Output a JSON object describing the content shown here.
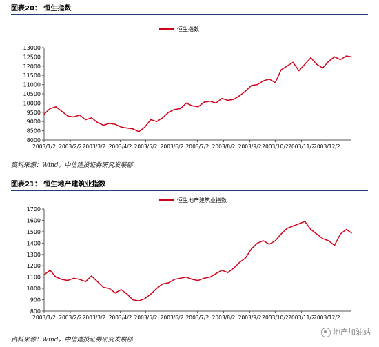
{
  "figures": [
    {
      "title": "图表20：  恒生指数",
      "source": "资料来源：Wind，中信建投证券研究发展部"
    },
    {
      "title": "图表21：  恒生地产建筑业指数",
      "source": "资料来源：Wind，中信建投证券研究发展部"
    }
  ],
  "watermark": "地产加油站",
  "chart_data": [
    {
      "type": "line",
      "title": "",
      "xlabel": "",
      "ylabel": "",
      "ylim": [
        8000,
        13000
      ],
      "yticks": [
        8000,
        8500,
        9000,
        9500,
        10000,
        10500,
        11000,
        11500,
        12000,
        12500,
        13000
      ],
      "xticks": [
        "2003/1/2",
        "2003/2/2",
        "2003/3/2",
        "2003/4/2",
        "2003/5/2",
        "2003/6/2",
        "2003/7/2",
        "2003/8/2",
        "2003/9/2",
        "2003/10/2",
        "2003/11/2",
        "2003/12/2"
      ],
      "grid": false,
      "legend_position": "top-center",
      "color": "#d0021b",
      "series": [
        {
          "name": "恒生指数",
          "x": [
            "2003/1/2",
            "2003/1/9",
            "2003/1/16",
            "2003/1/23",
            "2003/1/30",
            "2003/2/6",
            "2003/2/13",
            "2003/2/20",
            "2003/2/27",
            "2003/3/6",
            "2003/3/13",
            "2003/3/20",
            "2003/3/27",
            "2003/4/3",
            "2003/4/10",
            "2003/4/17",
            "2003/4/24",
            "2003/5/1",
            "2003/5/8",
            "2003/5/15",
            "2003/5/22",
            "2003/5/29",
            "2003/6/5",
            "2003/6/12",
            "2003/6/19",
            "2003/6/26",
            "2003/7/3",
            "2003/7/10",
            "2003/7/17",
            "2003/7/24",
            "2003/7/31",
            "2003/8/7",
            "2003/8/14",
            "2003/8/21",
            "2003/8/28",
            "2003/9/4",
            "2003/9/11",
            "2003/9/18",
            "2003/9/25",
            "2003/10/2",
            "2003/10/9",
            "2003/10/16",
            "2003/10/23",
            "2003/10/30",
            "2003/11/6",
            "2003/11/13",
            "2003/11/20",
            "2003/11/27",
            "2003/12/4",
            "2003/12/11",
            "2003/12/18",
            "2003/12/25",
            "2003/12/31"
          ],
          "values": [
            9400,
            9700,
            9800,
            9550,
            9300,
            9250,
            9350,
            9100,
            9200,
            8950,
            8800,
            8900,
            8850,
            8700,
            8650,
            8600,
            8450,
            8700,
            9100,
            9000,
            9200,
            9500,
            9650,
            9700,
            10000,
            9850,
            9800,
            10050,
            10100,
            10000,
            10250,
            10150,
            10200,
            10400,
            10650,
            10950,
            11000,
            11200,
            11300,
            11100,
            11800,
            12000,
            12200,
            11750,
            12100,
            12450,
            12100,
            11900,
            12250,
            12500,
            12350,
            12550,
            12500
          ]
        }
      ]
    },
    {
      "type": "line",
      "title": "",
      "xlabel": "",
      "ylabel": "",
      "ylim": [
        800,
        1700
      ],
      "yticks": [
        800,
        900,
        1000,
        1100,
        1200,
        1300,
        1400,
        1500,
        1600,
        1700
      ],
      "xticks": [
        "2003/1/2",
        "2003/2/2",
        "2003/3/2",
        "2003/4/2",
        "2003/5/2",
        "2003/6/2",
        "2003/7/2",
        "2003/8/2",
        "2003/9/2",
        "2003/10/2",
        "2003/11/2",
        "2003/12/2"
      ],
      "grid": false,
      "legend_position": "top-center",
      "color": "#d0021b",
      "series": [
        {
          "name": "恒生地产建筑业指数",
          "x": [
            "2003/1/2",
            "2003/1/9",
            "2003/1/16",
            "2003/1/23",
            "2003/1/30",
            "2003/2/6",
            "2003/2/13",
            "2003/2/20",
            "2003/2/27",
            "2003/3/6",
            "2003/3/13",
            "2003/3/20",
            "2003/3/27",
            "2003/4/3",
            "2003/4/10",
            "2003/4/17",
            "2003/4/24",
            "2003/5/1",
            "2003/5/8",
            "2003/5/15",
            "2003/5/22",
            "2003/5/29",
            "2003/6/5",
            "2003/6/12",
            "2003/6/19",
            "2003/6/26",
            "2003/7/3",
            "2003/7/10",
            "2003/7/17",
            "2003/7/24",
            "2003/7/31",
            "2003/8/7",
            "2003/8/14",
            "2003/8/21",
            "2003/8/28",
            "2003/9/4",
            "2003/9/11",
            "2003/9/18",
            "2003/9/25",
            "2003/10/2",
            "2003/10/9",
            "2003/10/16",
            "2003/10/23",
            "2003/10/30",
            "2003/11/6",
            "2003/11/13",
            "2003/11/20",
            "2003/11/27",
            "2003/12/4",
            "2003/12/11",
            "2003/12/18",
            "2003/12/25",
            "2003/12/31"
          ],
          "values": [
            1120,
            1160,
            1100,
            1080,
            1070,
            1090,
            1080,
            1060,
            1110,
            1060,
            1010,
            1000,
            960,
            990,
            950,
            900,
            890,
            910,
            950,
            1000,
            1040,
            1050,
            1080,
            1090,
            1100,
            1080,
            1070,
            1090,
            1100,
            1130,
            1160,
            1140,
            1180,
            1230,
            1270,
            1350,
            1400,
            1420,
            1390,
            1420,
            1480,
            1530,
            1550,
            1570,
            1590,
            1520,
            1480,
            1440,
            1420,
            1380,
            1480,
            1520,
            1490
          ]
        }
      ]
    }
  ]
}
